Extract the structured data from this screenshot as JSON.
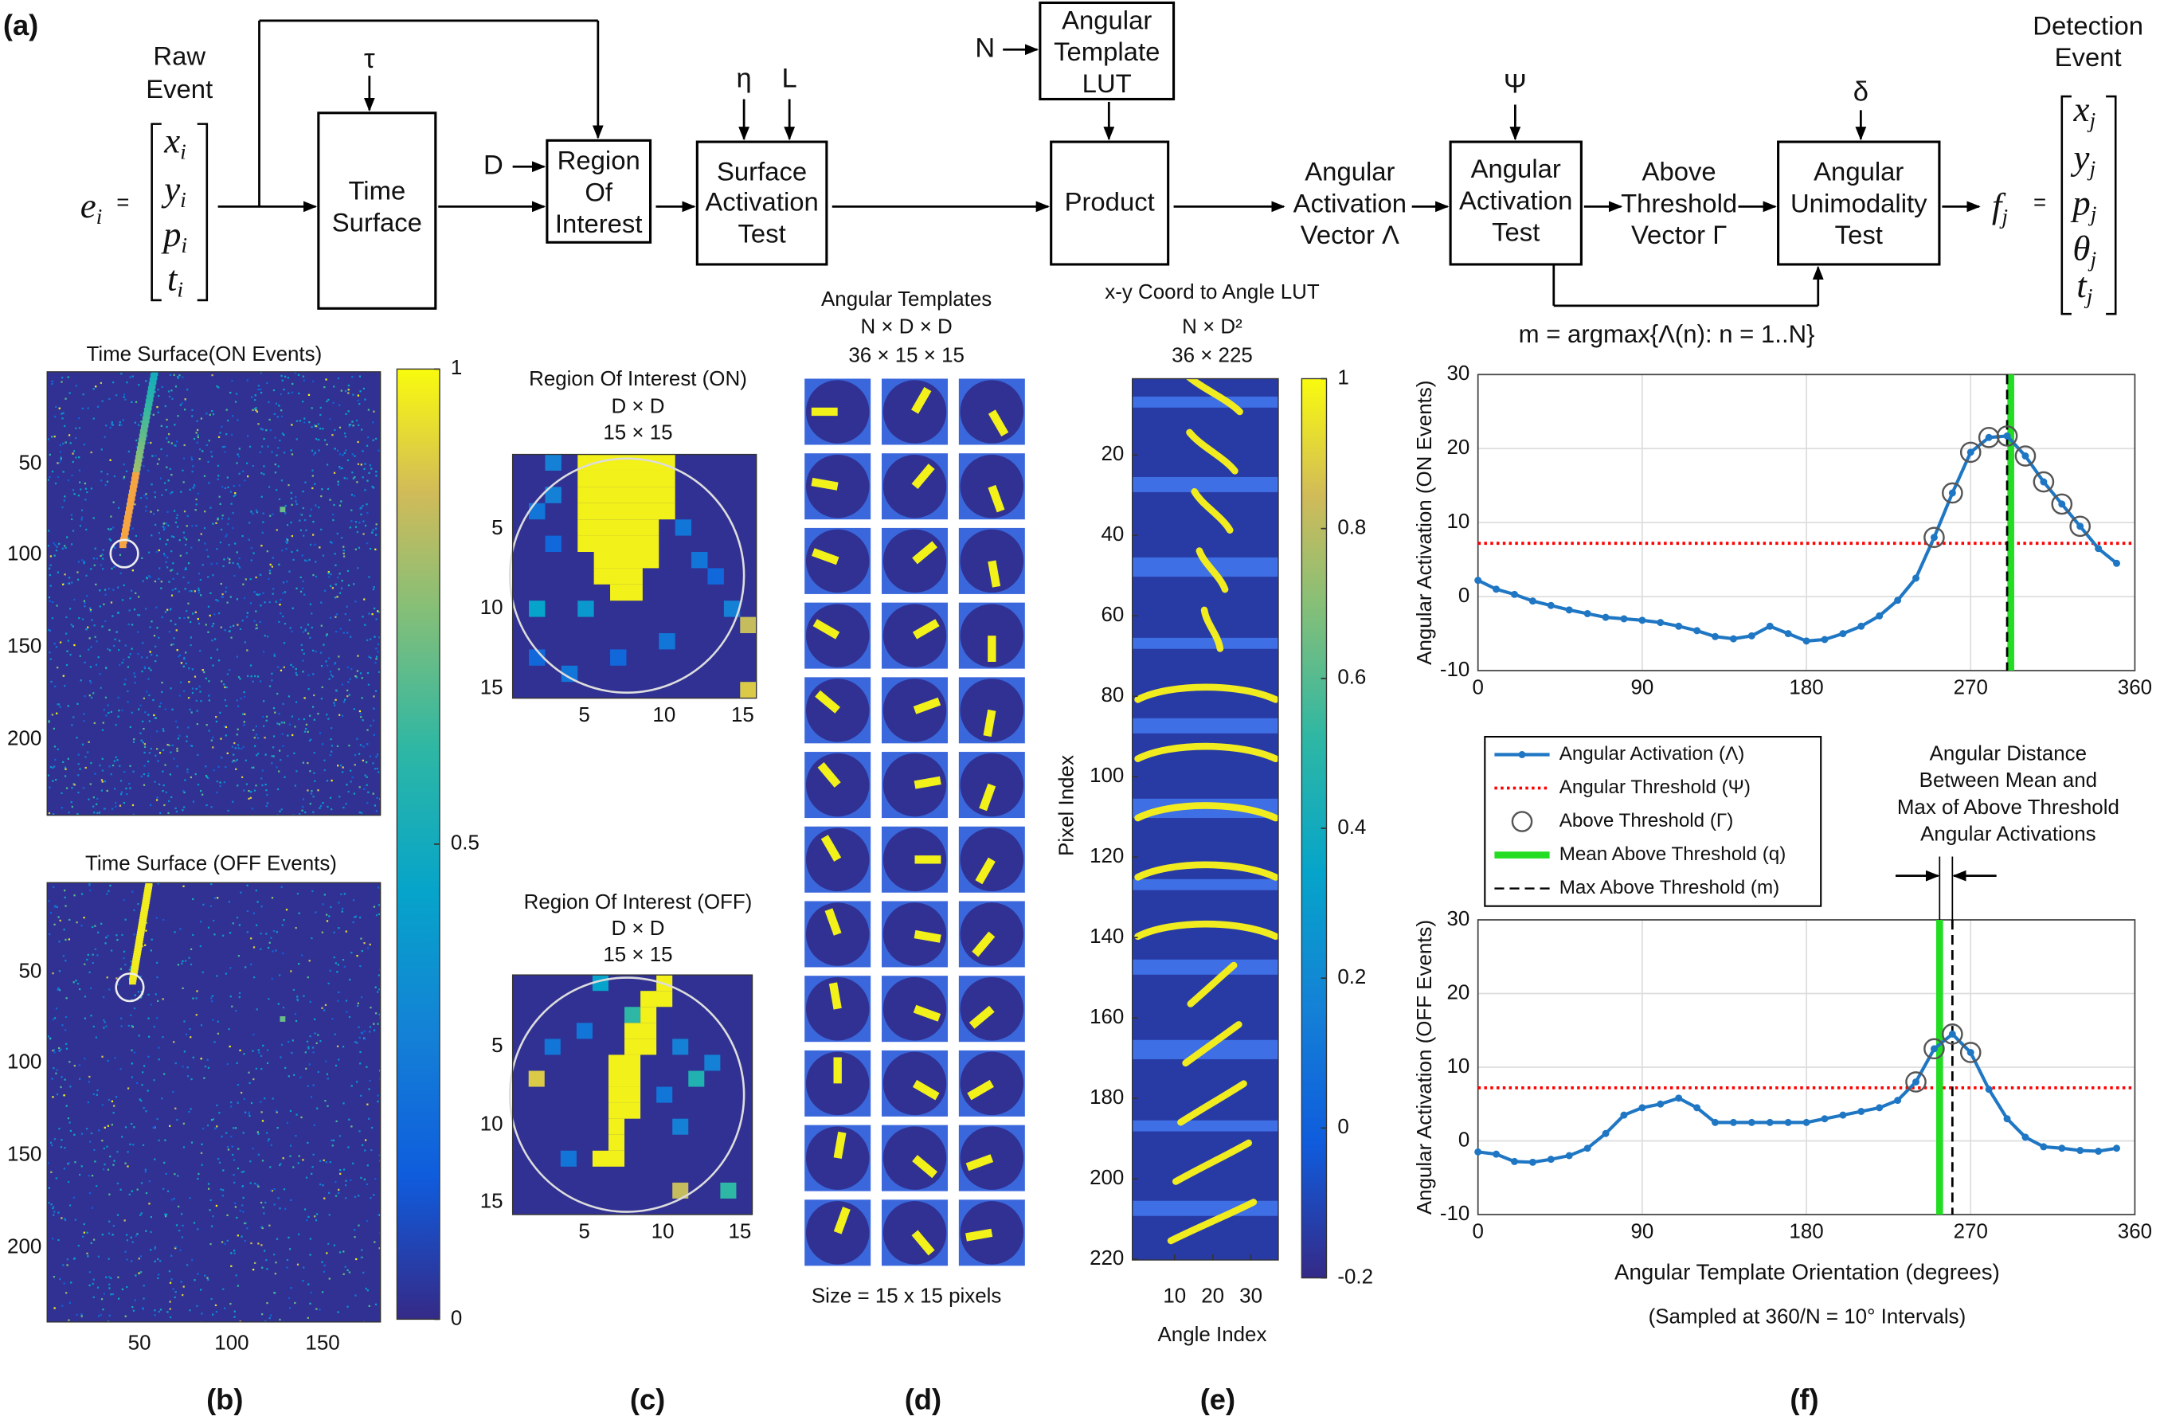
{
  "figure_label": "(a)",
  "panel_labels": [
    "(b)",
    "(c)",
    "(d)",
    "(e)",
    "(f)"
  ],
  "diagram": {
    "boxes": {
      "time_surface": [
        "Time",
        "Surface"
      ],
      "region_of_interest": [
        "Region",
        "Of",
        "Interest"
      ],
      "surface_activation_test": [
        "Surface",
        "Activation",
        "Test"
      ],
      "angular_template_lut": [
        "Angular",
        "Template",
        "LUT"
      ],
      "product": [
        "Product"
      ],
      "angular_activation_test": [
        "Angular",
        "Activation",
        "Test"
      ],
      "angular_unimodality_test": [
        "Angular",
        "Unimodality",
        "Test"
      ]
    },
    "labels": {
      "raw_event": [
        "Raw",
        "Event"
      ],
      "angular_activation_vector": [
        "Angular",
        "Activation",
        "Vector Λ"
      ],
      "above_threshold_vector": [
        "Above",
        "Threshold",
        "Vector Γ"
      ],
      "detection_event": [
        "Detection",
        "Event"
      ],
      "argmax": "m = argmax{Λ(n): n = 1..N}"
    },
    "inputs": {
      "tau": "τ",
      "D": "D",
      "eta": "η",
      "L": "L",
      "N": "N",
      "psi": "Ψ",
      "delta": "δ"
    },
    "input_event": {
      "symbol": "e",
      "index": "i",
      "equals": "=",
      "vector": [
        "x",
        "y",
        "p",
        "t"
      ]
    },
    "output_event": {
      "symbol": "f",
      "index": "j",
      "equals": "=",
      "vector": [
        "x",
        "y",
        "p",
        "θ",
        "t"
      ]
    }
  },
  "time_surface": {
    "titles": [
      "Time Surface(ON Events)",
      "Time Surface (OFF Events)"
    ],
    "yticks": [
      50,
      100,
      150,
      200
    ],
    "xticks": [
      50,
      100,
      150
    ],
    "colorbar_ticks": [
      0,
      0.5,
      1
    ]
  },
  "roi": {
    "on_title": [
      "Region Of Interest (ON)",
      "D × D",
      "15 × 15"
    ],
    "off_title": [
      "Region Of Interest (OFF)",
      "D × D",
      "15 × 15"
    ],
    "ticks": [
      5,
      10,
      15
    ]
  },
  "templates": {
    "title": [
      "Angular Templates",
      "N × D × D",
      "36 × 15 × 15"
    ],
    "footer": "Size = 15 x 15 pixels"
  },
  "lut": {
    "title": [
      "x-y Coord to Angle LUT",
      "N × D²",
      "36 × 225"
    ],
    "yticks": [
      20,
      40,
      60,
      80,
      100,
      120,
      140,
      160,
      180,
      200,
      220
    ],
    "xticks": [
      10,
      20,
      30
    ],
    "ylabel": "Pixel Index",
    "xlabel": "Angle Index",
    "colorbar_ticks": [
      -0.2,
      0,
      0.2,
      0.4,
      0.6,
      0.8,
      1
    ]
  },
  "chart_data": [
    {
      "type": "line",
      "ylabel": "Angular Activation (ON Events)",
      "x": [
        0,
        10,
        20,
        30,
        40,
        50,
        60,
        70,
        80,
        90,
        100,
        110,
        120,
        130,
        140,
        150,
        160,
        170,
        180,
        190,
        200,
        210,
        220,
        230,
        240,
        250,
        260,
        270,
        280,
        290,
        300,
        310,
        320,
        330,
        340,
        350
      ],
      "xlim": [
        0,
        360
      ],
      "xticks": [
        0,
        90,
        180,
        270,
        360
      ],
      "ylim": [
        -10,
        30
      ],
      "yticks": [
        -10,
        0,
        10,
        20,
        30
      ],
      "grid": true,
      "series": [
        {
          "color": "#1f77c4",
          "values": [
            2.2,
            1.0,
            0.3,
            -0.6,
            -1.2,
            -1.8,
            -2.3,
            -2.8,
            -3.0,
            -3.2,
            -3.5,
            -4.0,
            -4.6,
            -5.4,
            -5.7,
            -5.3,
            -4.0,
            -5.0,
            -6.0,
            -5.8,
            -5.0,
            -4.0,
            -2.6,
            -0.5,
            2.5,
            8.0,
            14.0,
            19.5,
            21.5,
            21.7,
            19.0,
            15.5,
            12.5,
            9.5,
            6.5,
            4.5
          ]
        }
      ],
      "threshold": {
        "value": 7.2,
        "color": "#ff0000"
      },
      "above": {
        "color": "#555555"
      },
      "mean": {
        "value": 292,
        "color": "#22dd22"
      },
      "max": {
        "value": 290,
        "color": "#000000"
      }
    },
    {
      "type": "line",
      "ylabel": "Angular Activation (OFF Events)",
      "xlabel": "Angular Template Orientation (degrees)",
      "note": "(Sampled at 360/N = 10° Intervals)",
      "annotation": [
        "Angular Distance",
        "Between Mean and",
        "Max of Above Threshold",
        "Angular Activations"
      ],
      "x": [
        0,
        10,
        20,
        30,
        40,
        50,
        60,
        70,
        80,
        90,
        100,
        110,
        120,
        130,
        140,
        150,
        160,
        170,
        180,
        190,
        200,
        210,
        220,
        230,
        240,
        250,
        260,
        270,
        280,
        290,
        300,
        310,
        320,
        330,
        340,
        350
      ],
      "xlim": [
        0,
        360
      ],
      "xticks": [
        0,
        90,
        180,
        270,
        360
      ],
      "ylim": [
        -10,
        30
      ],
      "yticks": [
        -10,
        0,
        10,
        20,
        30
      ],
      "grid": true,
      "series": [
        {
          "name": "Angular Activation  (Λ)",
          "color": "#1f77c4",
          "values": [
            -1.5,
            -1.8,
            -2.8,
            -2.9,
            -2.5,
            -2.0,
            -1.0,
            1.0,
            3.5,
            4.5,
            5.0,
            5.8,
            4.5,
            2.5,
            2.5,
            2.5,
            2.5,
            2.5,
            2.5,
            3.0,
            3.5,
            4.0,
            4.5,
            5.5,
            8.0,
            12.5,
            14.5,
            12.0,
            7.0,
            3.0,
            0.5,
            -0.8,
            -1.0,
            -1.3,
            -1.4,
            -1.0
          ]
        }
      ],
      "threshold": {
        "name": "Angular Threshold (Ψ)",
        "value": 7.2,
        "color": "#ff0000"
      },
      "above": {
        "name": "Above Threshold   (Γ)",
        "color": "#555555"
      },
      "mean": {
        "name": "Mean Above Threshold (q)",
        "value": 253,
        "color": "#22dd22"
      },
      "max": {
        "name": "Max  Above Threshold (m)",
        "value": 260,
        "color": "#000000"
      }
    }
  ]
}
